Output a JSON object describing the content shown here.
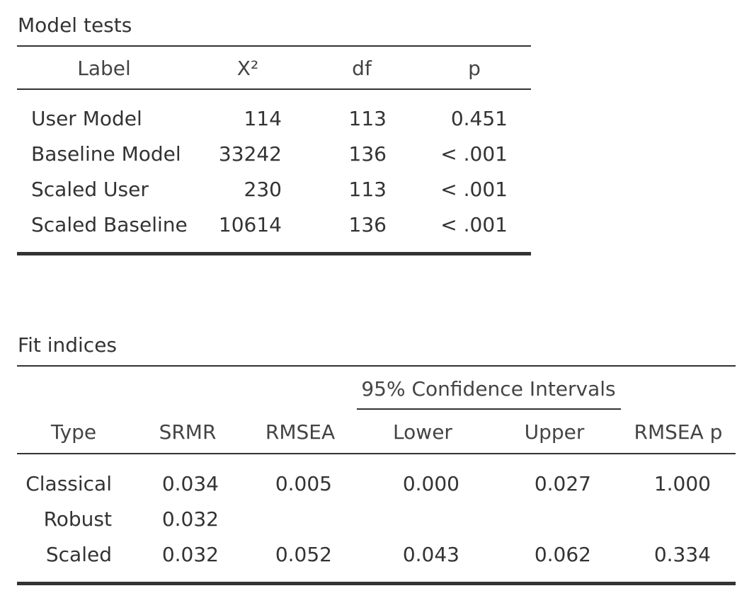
{
  "model_tests": {
    "title": "Model tests",
    "headers": {
      "label": "Label",
      "chi2": "X²",
      "df": "df",
      "p": "p"
    },
    "rows": [
      {
        "label": "User Model",
        "chi2": "114",
        "df": "113",
        "p": "0.451"
      },
      {
        "label": "Baseline Model",
        "chi2": "33242",
        "df": "136",
        "p": "< .001"
      },
      {
        "label": "Scaled User",
        "chi2": "230",
        "df": "113",
        "p": "< .001"
      },
      {
        "label": "Scaled Baseline",
        "chi2": "10614",
        "df": "136",
        "p": "< .001"
      }
    ]
  },
  "fit_indices": {
    "title": "Fit indices",
    "group_header": "95% Confidence Intervals",
    "headers": {
      "type": "Type",
      "srmr": "SRMR",
      "rmsea": "RMSEA",
      "lower": "Lower",
      "upper": "Upper",
      "rmsea_p": "RMSEA p"
    },
    "rows": [
      {
        "type": "Classical",
        "srmr": "0.034",
        "rmsea": "0.005",
        "lower": "0.000",
        "upper": "0.027",
        "rmsea_p": "1.000"
      },
      {
        "type": "Robust",
        "srmr": "0.032",
        "rmsea": "",
        "lower": "",
        "upper": "",
        "rmsea_p": ""
      },
      {
        "type": "Scaled",
        "srmr": "0.032",
        "rmsea": "0.052",
        "lower": "0.043",
        "upper": "0.062",
        "rmsea_p": "0.334"
      }
    ]
  }
}
